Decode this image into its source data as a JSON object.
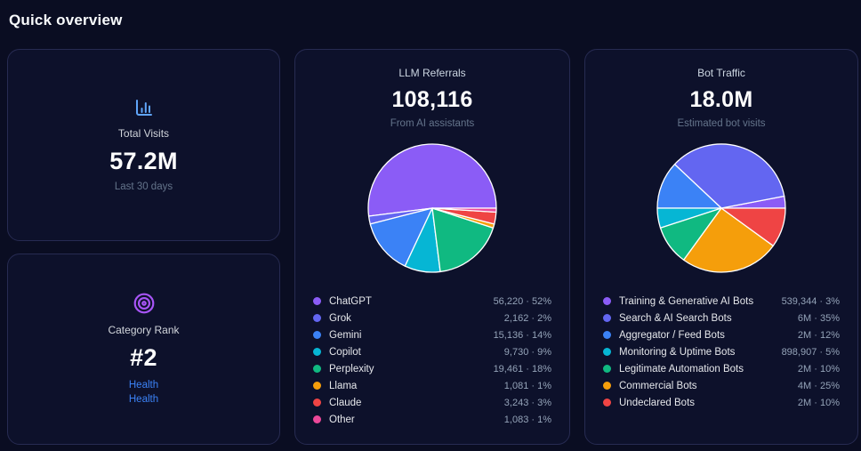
{
  "page_title": "Quick overview",
  "colors": {
    "accent_blue": "#60a5fa",
    "accent_purple": "#a855f7",
    "link_blue": "#3b82f6"
  },
  "cards": {
    "total_visits": {
      "label": "Total Visits",
      "value": "57.2M",
      "sublabel": "Last 30 days"
    },
    "category_rank": {
      "label": "Category Rank",
      "value": "#2",
      "links": [
        "Health",
        "Health"
      ]
    },
    "llm_referrals": {
      "title": "LLM Referrals",
      "value": "108,116",
      "subtitle": "From AI assistants"
    },
    "bot_traffic": {
      "title": "Bot Traffic",
      "value": "18.0M",
      "subtitle": "Estimated bot visits"
    }
  },
  "chart_data": [
    {
      "type": "pie",
      "title": "LLM Referrals",
      "total": "108,116",
      "start_angle_deg": 0,
      "direction": "counterclockwise",
      "edge_color": "#ffffff",
      "slices": [
        {
          "label": "ChatGPT",
          "value": "56,220",
          "pct": 52,
          "color": "#8b5cf6"
        },
        {
          "label": "Grok",
          "value": "2,162",
          "pct": 2,
          "color": "#6366f1"
        },
        {
          "label": "Gemini",
          "value": "15,136",
          "pct": 14,
          "color": "#3b82f6"
        },
        {
          "label": "Copilot",
          "value": "9,730",
          "pct": 9,
          "color": "#06b6d4"
        },
        {
          "label": "Perplexity",
          "value": "19,461",
          "pct": 18,
          "color": "#10b981"
        },
        {
          "label": "Llama",
          "value": "1,081",
          "pct": 1,
          "color": "#f59e0b"
        },
        {
          "label": "Claude",
          "value": "3,243",
          "pct": 3,
          "color": "#ef4444"
        },
        {
          "label": "Other",
          "value": "1,083",
          "pct": 1,
          "color": "#ec4899"
        }
      ]
    },
    {
      "type": "pie",
      "title": "Bot Traffic",
      "total": "18.0M",
      "start_angle_deg": 0,
      "direction": "counterclockwise",
      "edge_color": "#ffffff",
      "slices": [
        {
          "label": "Training & Generative AI Bots",
          "value": "539,344",
          "pct": 3,
          "color": "#8b5cf6"
        },
        {
          "label": "Search & AI Search Bots",
          "value": "6M",
          "pct": 35,
          "color": "#6366f1"
        },
        {
          "label": "Aggregator / Feed Bots",
          "value": "2M",
          "pct": 12,
          "color": "#3b82f6"
        },
        {
          "label": "Monitoring & Uptime Bots",
          "value": "898,907",
          "pct": 5,
          "color": "#06b6d4"
        },
        {
          "label": "Legitimate Automation Bots",
          "value": "2M",
          "pct": 10,
          "color": "#10b981"
        },
        {
          "label": "Commercial Bots",
          "value": "4M",
          "pct": 25,
          "color": "#f59e0b"
        },
        {
          "label": "Undeclared Bots",
          "value": "2M",
          "pct": 10,
          "color": "#ef4444"
        }
      ]
    }
  ]
}
